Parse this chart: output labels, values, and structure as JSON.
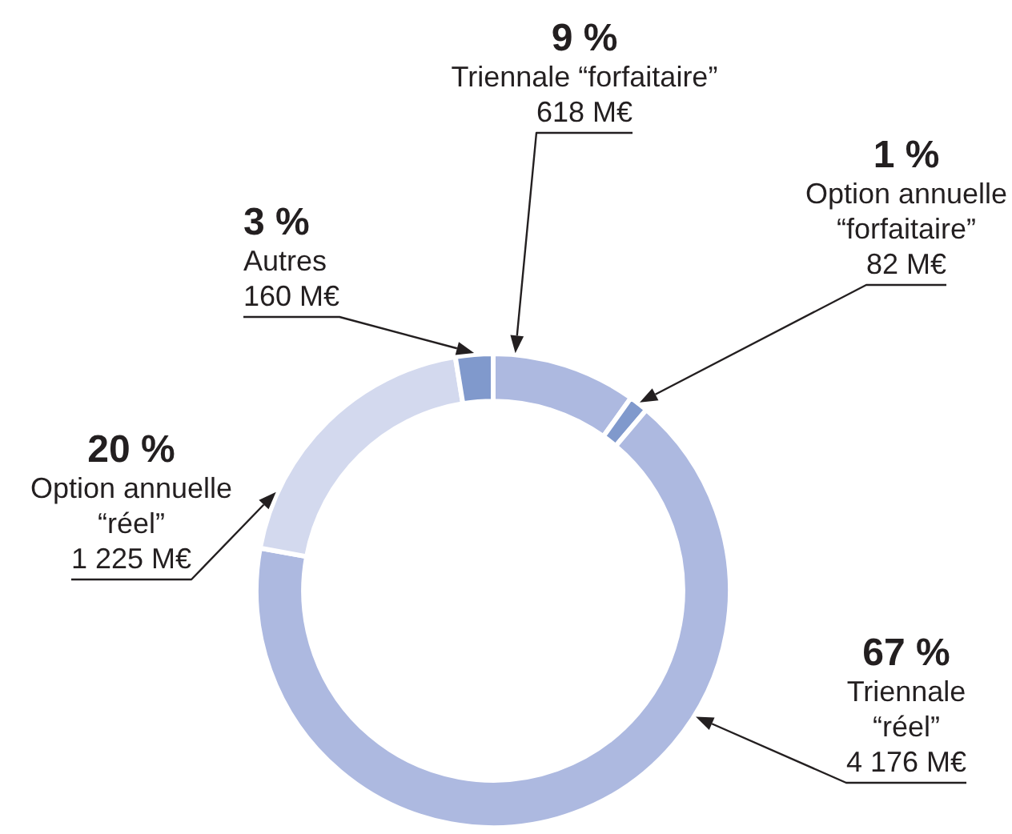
{
  "chart_data": {
    "type": "donut",
    "categories": [
      "Triennale “forfaitaire”",
      "Option annuelle\n“forfaitaire”",
      "Triennale\n“réel”",
      "Option annuelle\n“réel”",
      "Autres"
    ],
    "values": [
      618,
      82,
      4176,
      1225,
      160
    ],
    "colors": [
      "#adb9e0",
      "#8099cc",
      "#adb9e0",
      "#d3d9ee",
      "#8099cc"
    ],
    "value_labels": [
      "618 M€",
      "82 M€",
      "4 176 M€",
      "1 225 M€",
      "160 M€"
    ],
    "annotations": [
      {
        "text": "9 %",
        "x": "Triennale “forfaitaire”"
      },
      {
        "text": "1 %",
        "x": "Option annuelle\n“forfaitaire”"
      },
      {
        "text": "67 %",
        "x": "Triennale\n“réel”"
      },
      {
        "text": "20 %",
        "x": "Option annuelle\n“réel”"
      },
      {
        "text": "3 %",
        "x": "Autres"
      }
    ]
  }
}
